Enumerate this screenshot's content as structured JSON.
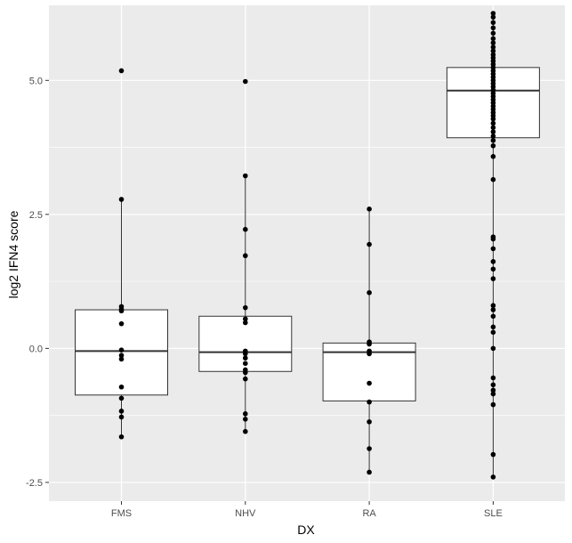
{
  "chart_data": {
    "type": "box",
    "xlabel": "DX",
    "ylabel": "log2 IFN4 score",
    "ylim": [
      -2.85,
      6.4
    ],
    "yticks": [
      -2.5,
      0.0,
      2.5,
      5.0
    ],
    "ytick_labels": [
      "-2.5",
      "0.0",
      "2.5",
      "5.0"
    ],
    "yminor": [
      -1.25,
      1.25,
      3.75
    ],
    "grid": true,
    "background": "#ebebeb",
    "gridcolor": "#ffffff",
    "categories": [
      "FMS",
      "NHV",
      "RA",
      "SLE"
    ],
    "boxes": [
      {
        "category": "FMS",
        "q1": -0.87,
        "median": -0.05,
        "q3": 0.72,
        "whisker_low": -1.65,
        "whisker_high": 2.78
      },
      {
        "category": "NHV",
        "q1": -0.43,
        "median": -0.07,
        "q3": 0.6,
        "whisker_low": -1.55,
        "whisker_high": 3.22
      },
      {
        "category": "RA",
        "q1": -0.98,
        "median": -0.07,
        "q3": 0.1,
        "whisker_low": -2.31,
        "whisker_high": 2.6
      },
      {
        "category": "SLE",
        "q1": 3.93,
        "median": 4.81,
        "q3": 5.24,
        "whisker_low": -2.4,
        "whisker_high": 6.25
      }
    ],
    "points": [
      {
        "category": "FMS",
        "values": [
          5.18,
          2.78,
          0.78,
          0.73,
          0.7,
          0.46,
          -0.03,
          -0.13,
          -0.2,
          -0.72,
          -0.93,
          -1.17,
          -1.28,
          -1.65
        ]
      },
      {
        "category": "NHV",
        "values": [
          4.98,
          3.22,
          2.22,
          1.73,
          0.76,
          0.55,
          0.48,
          -0.05,
          -0.1,
          -0.18,
          -0.28,
          -0.4,
          -0.45,
          -0.57,
          -1.22,
          -1.32,
          -1.55
        ]
      },
      {
        "category": "RA",
        "values": [
          2.6,
          1.94,
          1.04,
          0.12,
          0.08,
          -0.05,
          -0.1,
          -0.65,
          -1.0,
          -1.37,
          -1.87,
          -2.31
        ]
      },
      {
        "category": "SLE",
        "values": [
          6.25,
          6.18,
          6.08,
          5.98,
          5.88,
          5.78,
          5.7,
          5.62,
          5.55,
          5.48,
          5.42,
          5.36,
          5.3,
          5.24,
          5.18,
          5.12,
          5.06,
          5.0,
          4.94,
          4.88,
          4.82,
          4.76,
          4.7,
          4.64,
          4.58,
          4.52,
          4.46,
          4.4,
          4.34,
          4.28,
          4.2,
          4.12,
          4.04,
          3.96,
          3.88,
          3.78,
          3.58,
          3.15,
          2.08,
          2.04,
          1.86,
          1.62,
          1.48,
          1.3,
          0.8,
          0.72,
          0.6,
          0.4,
          0.3,
          0.0,
          -0.55,
          -0.68,
          -0.78,
          -0.85,
          -1.05,
          -1.98,
          -2.4
        ]
      }
    ]
  }
}
